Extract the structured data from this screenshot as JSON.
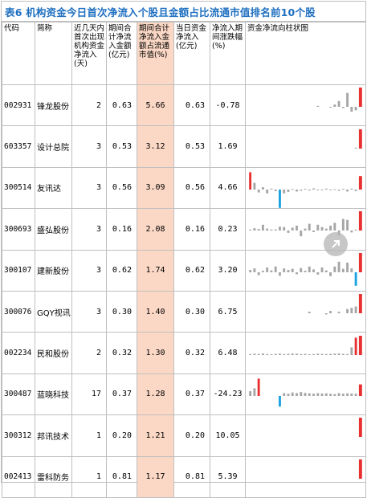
{
  "title": "表6 机构资金今日首次净流入个股且金额占比流通市值排名前10个股",
  "headers": {
    "code": "代码",
    "name": "简称",
    "days": "近几天内首次出现机构资金净流入(天)",
    "period_amount": "期间合计净流入金额(亿元)",
    "period_ratio": "期间合计净流入金额占流通市值(%)",
    "today_amount": "当日资金净流入(亿元)",
    "period_change": "净流入期间涨跌幅(%)",
    "chart": "资金净流向柱状图"
  },
  "colors": {
    "highlight": "#fbd8c5",
    "title": "#1e6fc0",
    "positive": "#e83030",
    "negative": "#1aa3e0",
    "neutral": "#a6a6a6"
  },
  "rows": [
    {
      "code": "002931",
      "name": "锋龙股份",
      "days": "2",
      "period_amount": "0.63",
      "period_ratio": "5.66",
      "today_amount": "0.63",
      "period_change": "-0.78",
      "flows": [
        0,
        0,
        0,
        0,
        0,
        0,
        0,
        0,
        0,
        0,
        0,
        0,
        0,
        0,
        0,
        0,
        0.05,
        0,
        0,
        -0.04,
        0.12,
        0.3,
        -0.06,
        0.72,
        -0.25,
        -0.18,
        1.0
      ]
    },
    {
      "code": "603357",
      "name": "设计总院",
      "days": "3",
      "period_amount": "0.53",
      "period_ratio": "3.12",
      "today_amount": "0.53",
      "period_change": "1.69",
      "flows": [
        0,
        0,
        0,
        0,
        0,
        0,
        0,
        0,
        0,
        0,
        0,
        0,
        0,
        0,
        0,
        0,
        0,
        0,
        0,
        0,
        0,
        0,
        0,
        0,
        0,
        0.05,
        1.0
      ]
    },
    {
      "code": "300514",
      "name": "友讯达",
      "days": "3",
      "period_amount": "0.56",
      "period_ratio": "3.09",
      "today_amount": "0.56",
      "period_change": "4.66",
      "flows": [
        0.9,
        0.35,
        -0.15,
        0.12,
        -0.2,
        0.05,
        -0.08,
        -0.95,
        -0.2,
        -0.12,
        0.02,
        -0.1,
        -0.06,
        0.04,
        -0.05,
        0.06,
        -0.03,
        -0.02,
        0.05,
        -0.04,
        0.02,
        -0.06,
        0.04,
        -0.1,
        0.05,
        -0.08,
        0.7
      ]
    },
    {
      "code": "300693",
      "name": "盛弘股份",
      "days": "3",
      "period_amount": "0.16",
      "period_ratio": "2.08",
      "today_amount": "0.16",
      "period_change": "0.23",
      "flows": [
        0.05,
        0.12,
        0.08,
        0.3,
        0.1,
        0.05,
        0.06,
        0.2,
        0.18,
        -0.12,
        0.15,
        0.25,
        -0.3,
        0.1,
        0.35,
        -0.08,
        0.3,
        0.18,
        0.1,
        0.25,
        0.4,
        -0.25,
        0.6,
        0.55,
        -0.1,
        0.05,
        1.0
      ]
    },
    {
      "code": "300107",
      "name": "建新股份",
      "days": "3",
      "period_amount": "0.62",
      "period_ratio": "1.74",
      "today_amount": "0.62",
      "period_change": "3.20",
      "flows": [
        0.12,
        0.2,
        -0.15,
        0.08,
        0.25,
        0.1,
        0.3,
        -0.18,
        0.2,
        0.12,
        0.18,
        -0.1,
        0.22,
        0.08,
        0.3,
        0.15,
        -0.12,
        0.25,
        0.1,
        -0.2,
        0.3,
        0.55,
        0.18,
        0.5,
        0.2,
        -0.7,
        1.0
      ]
    },
    {
      "code": "300076",
      "name": "GQY视讯",
      "days": "3",
      "period_amount": "0.30",
      "period_ratio": "1.40",
      "today_amount": "0.30",
      "period_change": "6.75",
      "flows": [
        0,
        0,
        0,
        0,
        0,
        0,
        0,
        0,
        0,
        0,
        0,
        0,
        0,
        0,
        0.08,
        0,
        0,
        0,
        -0.06,
        0.12,
        0,
        0.08,
        0,
        0.22,
        0.28,
        0.35,
        1.0
      ]
    },
    {
      "code": "002234",
      "name": "民和股份",
      "days": "2",
      "period_amount": "0.32",
      "period_ratio": "1.30",
      "today_amount": "0.32",
      "period_change": "6.48",
      "flows": [
        0.05,
        0.07,
        0.06,
        0.08,
        0.05,
        0.04,
        0.06,
        0.07,
        0.05,
        0.06,
        0.08,
        0.07,
        0.05,
        0.06,
        0.04,
        0.05,
        0.07,
        0.06,
        0.05,
        0.06,
        0.07,
        0.08,
        0.06,
        0.05,
        0.4,
        0.9,
        1.0
      ]
    },
    {
      "code": "300487",
      "name": "蓝晓科技",
      "days": "17",
      "period_amount": "0.37",
      "period_ratio": "1.28",
      "today_amount": "0.37",
      "period_change": "-24.23",
      "flows": [
        0.25,
        0.4,
        0.9,
        0,
        0,
        0,
        0,
        -0.55,
        0.15,
        0.12,
        0.18,
        0.15,
        0.2,
        0.16,
        0.14,
        0.12,
        0.15,
        0.13,
        0.14,
        0.12,
        0.1,
        0.15,
        0.12,
        0.14,
        0.13,
        0.12,
        0.6
      ]
    },
    {
      "code": "300312",
      "name": "邦讯技术",
      "days": "1",
      "period_amount": "0.20",
      "period_ratio": "1.21",
      "today_amount": "0.20",
      "period_change": "10.05",
      "flows": [
        0,
        0,
        0,
        0,
        0,
        0,
        0,
        0,
        0,
        0,
        0,
        0,
        0,
        0,
        0,
        0,
        0,
        0,
        0,
        0,
        0,
        0,
        0,
        0,
        0,
        0,
        1.0
      ]
    },
    {
      "code": "002413",
      "name": "雷科防务",
      "days": "1",
      "period_amount": "0.81",
      "period_ratio": "1.17",
      "today_amount": "0.81",
      "period_change": "5.39",
      "flows": [
        0,
        0,
        0,
        0,
        0,
        0,
        0,
        0,
        0,
        0,
        0,
        0,
        0,
        0,
        0,
        0,
        0,
        0,
        0,
        0,
        0,
        0,
        0,
        0,
        0,
        0,
        1.0
      ]
    }
  ]
}
